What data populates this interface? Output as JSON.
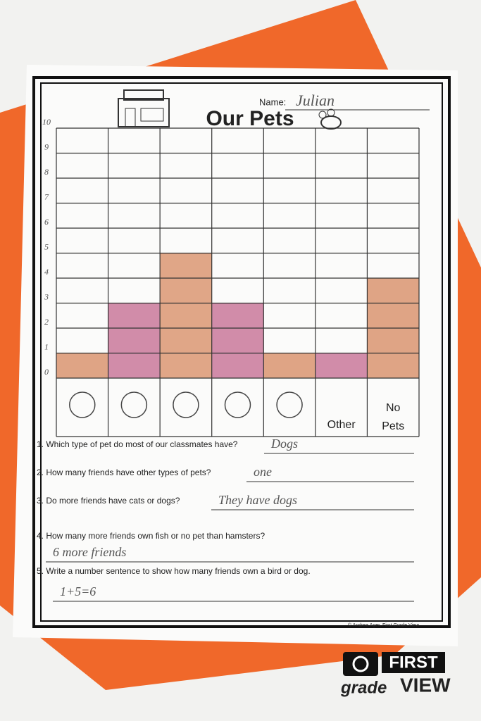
{
  "chart_data": {
    "type": "bar",
    "title": "Our Pets",
    "categories": [
      null,
      null,
      null,
      null,
      null,
      "Other",
      "No Pets"
    ],
    "values": [
      1,
      3,
      5,
      3,
      1,
      1,
      4
    ],
    "colors": [
      "#d99470",
      "#c9789a",
      "#db9672",
      "#c9789a",
      "#d99470",
      "#c9789a",
      "#d99470"
    ],
    "ylim": [
      0,
      10
    ],
    "yticks": [
      0,
      1,
      2,
      3,
      4,
      5,
      6,
      7,
      8,
      9,
      10
    ],
    "grid": true
  },
  "worksheet": {
    "name_label": "Name:",
    "name": "Julian",
    "questions": [
      {
        "text": "1. Which type of pet do most of our classmates have?",
        "answer": "Dogs"
      },
      {
        "text": "2. How many friends have other types of pets?",
        "answer": "one"
      },
      {
        "text": "3. Do more friends have cats or dogs?",
        "answer": "They have dogs"
      },
      {
        "text": "4. How many more friends own fish or no pet than hamsters?",
        "answer": "6 more friends"
      },
      {
        "text": "5. Write a number sentence to show how many friends own a bird or dog.",
        "answer": "1+5=6"
      }
    ],
    "copyright": "© Andrea Ager, First Grade View"
  },
  "logo": {
    "top": "FIRST",
    "bottom_left": "grade",
    "bottom_right": "VIEW"
  }
}
